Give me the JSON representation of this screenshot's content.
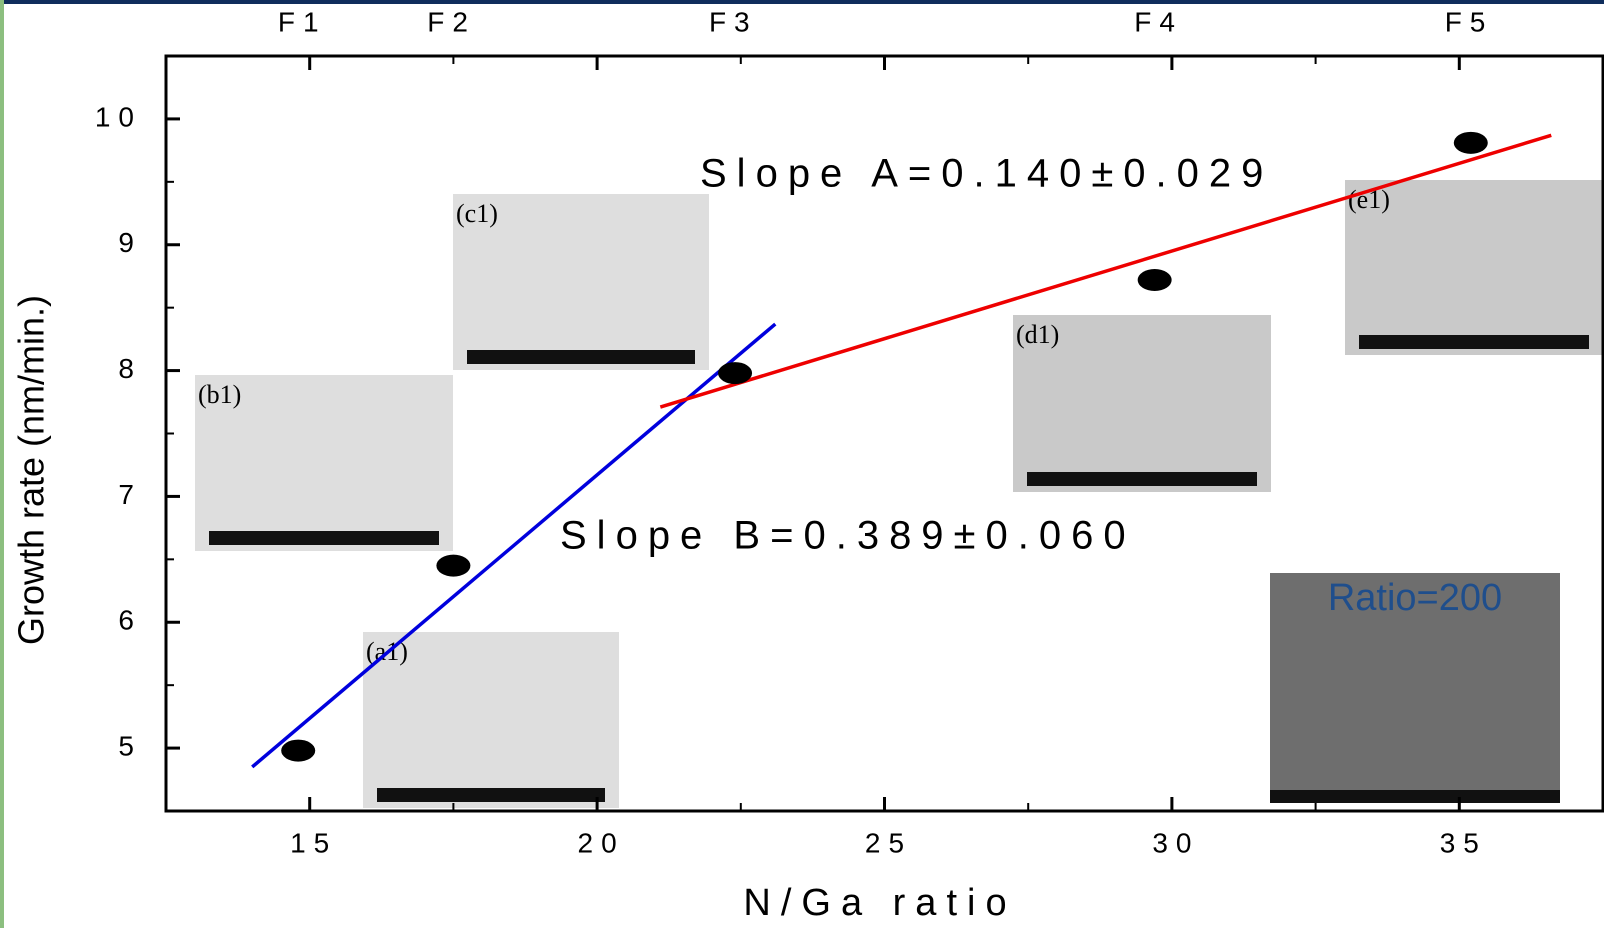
{
  "chart_data": {
    "type": "scatter",
    "x_label": "N/Ga ratio",
    "y_label": "Growth rate (nm/min.)",
    "x": [
      14.8,
      17.5,
      22.4,
      29.7,
      35.2
    ],
    "values": [
      4.98,
      6.45,
      7.98,
      8.72,
      9.81
    ],
    "color": "#000000",
    "xlim": [
      12.5,
      37.5
    ],
    "ylim": [
      4.5,
      10.5
    ],
    "xticks": [
      15,
      20,
      25,
      30,
      35
    ],
    "yticks": [
      5,
      6,
      7,
      8,
      9,
      10
    ],
    "xminorticks": [
      17.5,
      22.5,
      27.5,
      32.5
    ],
    "yminorticks": [
      5.5,
      6.5,
      7.5,
      8.5,
      9.5
    ],
    "top_ticks": [
      {
        "value": 14.8,
        "label": "F1"
      },
      {
        "value": 17.4,
        "label": "F2"
      },
      {
        "value": 22.3,
        "label": "F3"
      },
      {
        "value": 29.7,
        "label": "F4"
      },
      {
        "value": 35.1,
        "label": "F5"
      }
    ],
    "fits": [
      {
        "color": "#0000dd",
        "x": [
          14,
          23.1
        ],
        "y": [
          4.85,
          8.37
        ]
      },
      {
        "color": "#ee0000",
        "x": [
          21.1,
          36.6
        ],
        "y": [
          7.71,
          9.87
        ]
      }
    ],
    "annotations": [
      "Slope A=0.140±0.029",
      "Slope B=0.389±0.060"
    ],
    "insets": [
      "(a1)",
      "(b1)",
      "(c1)",
      "(d1)",
      "(e1)"
    ],
    "inset_caption": "Ratio=200"
  }
}
